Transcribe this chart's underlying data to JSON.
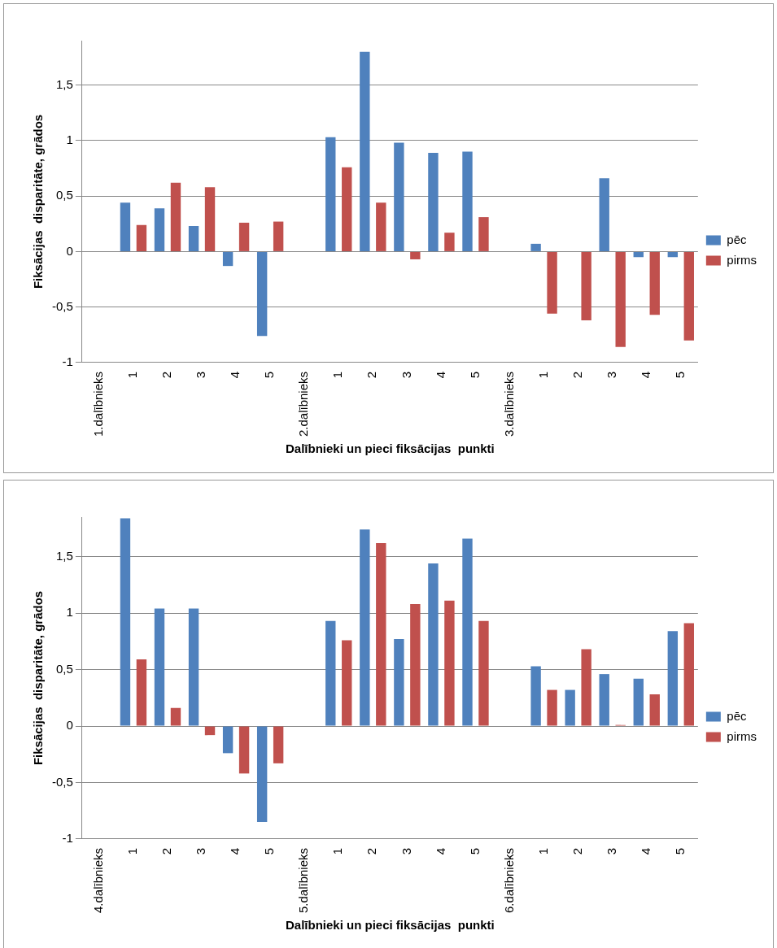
{
  "chart_data": [
    {
      "type": "bar",
      "xlabel": "Dalībnieki un pieci fiksācijas  punkti",
      "ylabel": "Fiksācijas  disparitāte, grādos",
      "categories": [
        "1.dalībnieks",
        "1",
        "2",
        "3",
        "4",
        "5",
        "2.dalībnieks",
        "1",
        "2",
        "3",
        "4",
        "5",
        "3.dalībnieks",
        "1",
        "2",
        "3",
        "4",
        "5"
      ],
      "series": [
        {
          "name": "pēc",
          "color": "#4f81bd",
          "values": [
            null,
            0.44,
            0.39,
            0.23,
            -0.13,
            -0.76,
            null,
            1.03,
            1.8,
            0.98,
            0.89,
            0.9,
            null,
            0.07,
            0,
            0.66,
            -0.05,
            -0.05
          ]
        },
        {
          "name": "pirms",
          "color": "#c0504d",
          "values": [
            null,
            0.24,
            0.62,
            0.58,
            0.26,
            0.27,
            null,
            0.76,
            0.44,
            -0.07,
            0.17,
            0.31,
            null,
            -0.56,
            -0.62,
            -0.86,
            -0.57,
            -0.8
          ]
        }
      ],
      "ylim": [
        -1,
        1.9
      ],
      "yticks": [
        -1,
        {
          "value": -0.5,
          "label": "-0,5"
        },
        0,
        {
          "value": 0.5,
          "label": "0,5"
        },
        1,
        {
          "value": 1.5,
          "label": "1,5"
        }
      ],
      "grid": "y",
      "legend": "right"
    },
    {
      "type": "bar",
      "xlabel": "Dalībnieki un pieci fiksācijas  punkti",
      "ylabel": "Fiksācijas  disparitāte, grādos",
      "categories": [
        "4.dalībnieks",
        "1",
        "2",
        "3",
        "4",
        "5",
        "5.dalībnieks",
        "1",
        "2",
        "3",
        "4",
        "5",
        "6.dalībnieks",
        "1",
        "2",
        "3",
        "4",
        "5"
      ],
      "series": [
        {
          "name": "pēc",
          "color": "#4f81bd",
          "values": [
            null,
            1.84,
            1.04,
            1.04,
            -0.24,
            -0.85,
            null,
            0.93,
            1.74,
            0.77,
            1.44,
            1.66,
            null,
            0.53,
            0.32,
            0.46,
            0.42,
            0.84
          ]
        },
        {
          "name": "pirms",
          "color": "#c0504d",
          "values": [
            null,
            0.59,
            0.16,
            -0.08,
            -0.42,
            -0.33,
            null,
            0.76,
            1.62,
            1.08,
            1.11,
            0.93,
            null,
            0.32,
            0.68,
            0.01,
            0.28,
            0.91
          ]
        }
      ],
      "ylim": [
        -1,
        1.85
      ],
      "yticks": [
        -1,
        {
          "value": -0.5,
          "label": "-0,5"
        },
        0,
        {
          "value": 0.5,
          "label": "0,5"
        },
        1,
        {
          "value": 1.5,
          "label": "1,5"
        }
      ],
      "grid": "y",
      "legend": "right"
    }
  ]
}
